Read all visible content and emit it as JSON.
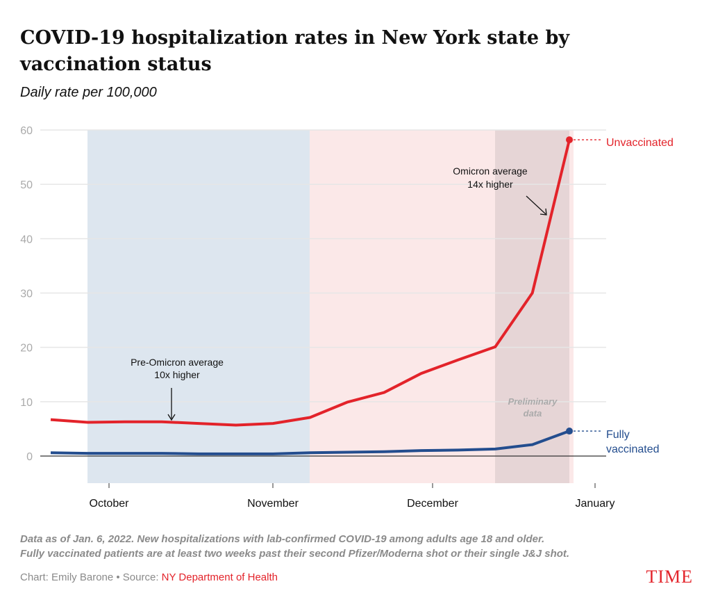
{
  "chart_data": {
    "type": "line",
    "title": "COVID-19 hospitalization rates in New York state by vaccination status",
    "subtitle": "Daily rate per 100,000",
    "ylim": [
      0,
      60
    ],
    "yticks": [
      0,
      10,
      20,
      30,
      40,
      50,
      60
    ],
    "xtick_labels": [
      "October",
      "November",
      "December",
      "January"
    ],
    "grid": true,
    "x_weeks": 15,
    "series": [
      {
        "name": "Unvaccinated",
        "color": "#e3232a",
        "values": [
          6.7,
          6.2,
          6.3,
          6.3,
          6.0,
          5.7,
          6.0,
          7.1,
          9.9,
          11.7,
          15.2,
          17.7,
          20.1,
          30.0,
          58.2
        ]
      },
      {
        "name": "Fully vaccinated",
        "color": "#234d8e",
        "values": [
          0.6,
          0.5,
          0.5,
          0.5,
          0.4,
          0.4,
          0.4,
          0.6,
          0.7,
          0.8,
          1.0,
          1.1,
          1.3,
          2.1,
          4.6
        ]
      }
    ],
    "periods": [
      {
        "name": "pre-omicron",
        "color": "#dde6ef"
      },
      {
        "name": "omicron",
        "color": "#fbe8e8"
      },
      {
        "name": "preliminary",
        "color": "#e6d5d6"
      }
    ],
    "annotations": {
      "pre_omicron_1": "Pre-Omicron average",
      "pre_omicron_2": "10x higher",
      "omicron_1": "Omicron average",
      "omicron_2": "14x higher",
      "prelim_1": "Preliminary",
      "prelim_2": "data",
      "label_unvax": "Unvaccinated",
      "label_vax_1": "Fully",
      "label_vax_2": "vaccinated"
    }
  },
  "footer": {
    "note_1": "Data as of Jan. 6, 2022. New hospitalizations with lab-confirmed COVID-19 among adults age 18 and older.",
    "note_2": "Fully vaccinated patients are at least two weeks past their second Pfizer/Moderna shot or their single J&J shot.",
    "credit": "Chart: Emily Barone • Source: ",
    "source": "NY Department of Health",
    "logo": "TIME"
  }
}
